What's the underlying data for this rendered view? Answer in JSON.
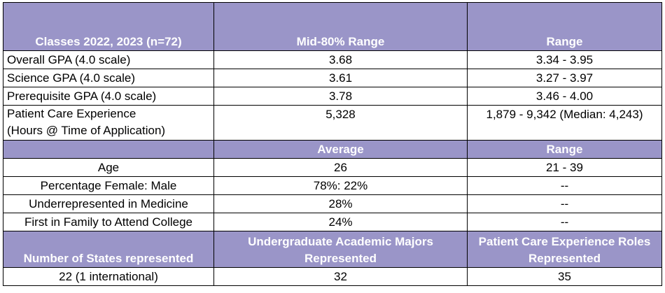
{
  "header1": {
    "col1": "Classes 2022, 2023 (n=72)",
    "col2": "Mid-80% Range",
    "col3": "Range"
  },
  "gpa_rows": [
    {
      "label": "Overall GPA (4.0 scale)",
      "mid": "3.68",
      "range": "3.34 - 3.95"
    },
    {
      "label": "Science GPA (4.0 scale)",
      "mid": "3.61",
      "range": "3.27 - 3.97"
    },
    {
      "label": "Prerequisite GPA (4.0 scale)",
      "mid": "3.78",
      "range": "3.46 - 4.00"
    }
  ],
  "pce_row": {
    "label_line1": "Patient Care Experience",
    "label_line2": "(Hours @ Time of Application)",
    "mid": "5,328",
    "range": "1,879 - 9,342 (Median: 4,243)"
  },
  "header2": {
    "col1": "",
    "col2": "Average",
    "col3": "Range"
  },
  "demo_rows": [
    {
      "label": "Age",
      "avg": "26",
      "range": "21 - 39"
    },
    {
      "label": "Percentage Female: Male",
      "avg": "78%: 22%",
      "range": "--"
    },
    {
      "label": "Underrepresented in Medicine",
      "avg": "28%",
      "range": "--"
    },
    {
      "label": "First in Family to Attend College",
      "avg": "24%",
      "range": "--"
    }
  ],
  "header3": {
    "col1": "Number of States represented",
    "col2_line1": "Undergraduate Academic Majors",
    "col2_line2": "Represented",
    "col3_line1": "Patient Care Experience Roles",
    "col3_line2": "Represented"
  },
  "final_row": {
    "states": "22 (1 international)",
    "majors": "32",
    "roles": "35"
  },
  "colors": {
    "header_bg": "#9a95c8",
    "header_text": "#ffffff",
    "border": "#000000"
  }
}
